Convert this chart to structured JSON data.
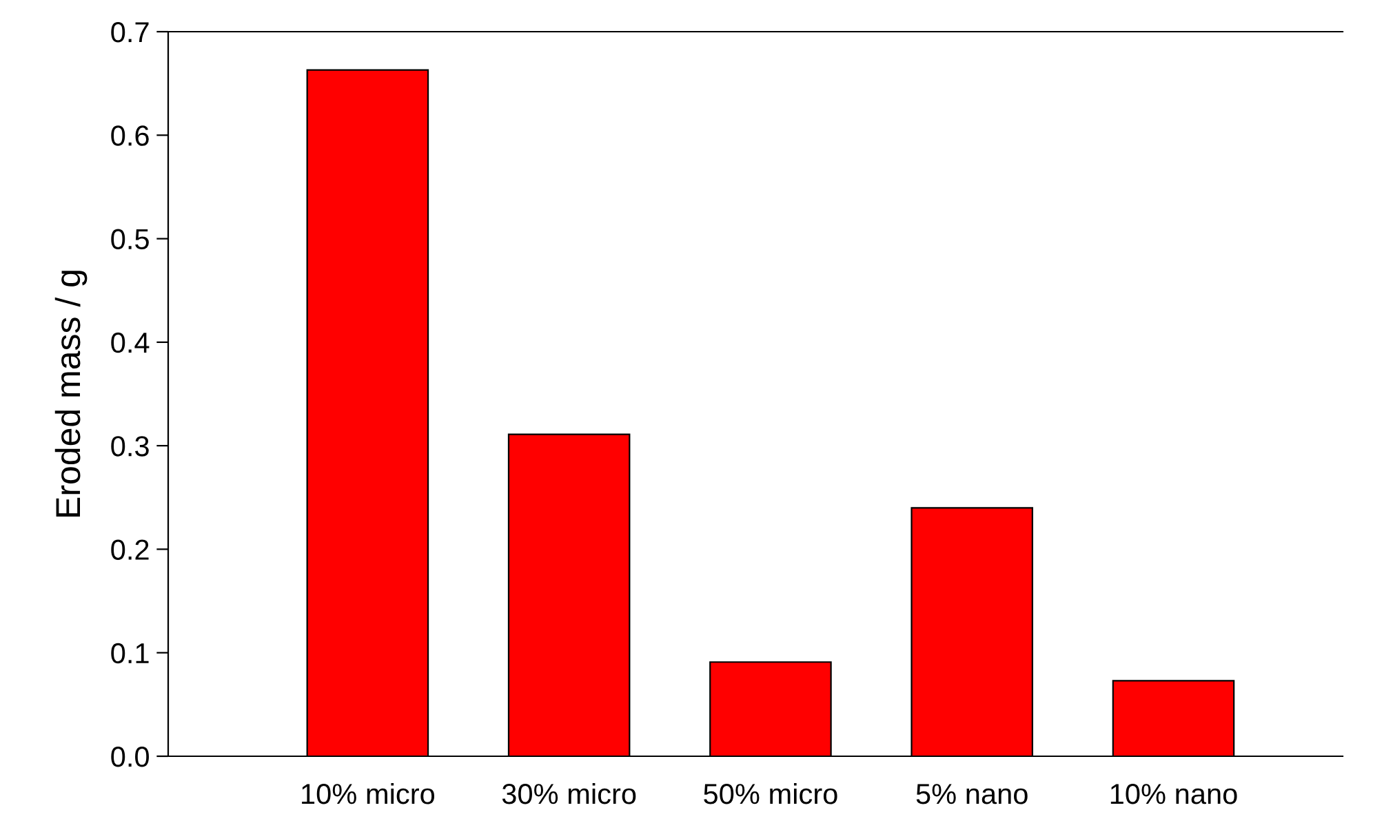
{
  "chart_data": {
    "type": "bar",
    "ylabel": "Eroded mass / g",
    "categories": [
      "10% micro",
      "30% micro",
      "50% micro",
      "5% nano",
      "10% nano"
    ],
    "values": [
      0.663,
      0.311,
      0.091,
      0.24,
      0.073
    ],
    "color": "#ff0000",
    "ylim": [
      0,
      0.7
    ],
    "yticks": [
      {
        "value": 0,
        "label": "0.0"
      },
      0.1,
      0.2,
      0.3,
      0.4,
      0.5,
      0.6,
      0.7
    ],
    "grid": false,
    "legend": false
  }
}
